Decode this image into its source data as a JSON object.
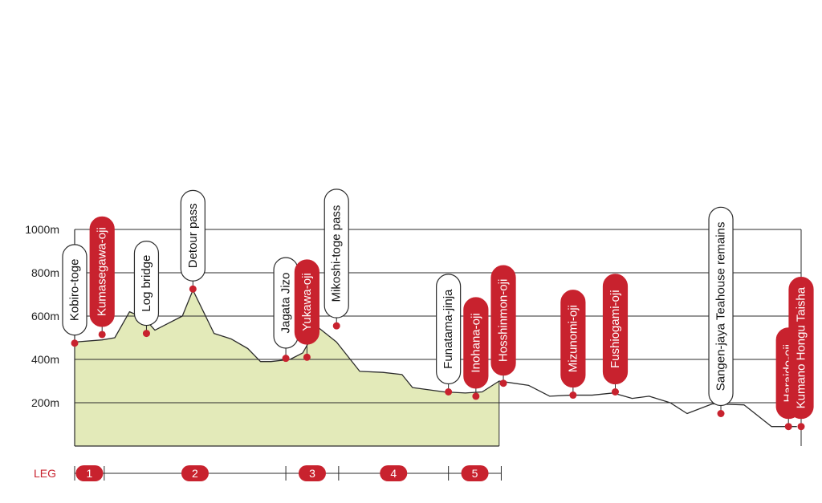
{
  "colors": {
    "accent": "#c8222e",
    "fill": "#e3eab9",
    "line": "#2b2b2b",
    "label_bg": "#ffffff"
  },
  "chart_data": {
    "type": "area",
    "title": "",
    "xlabel": "",
    "ylabel": "",
    "ylim": [
      0,
      1000
    ],
    "grid": true,
    "y_ticks": [
      {
        "value": 1000,
        "label": "1000m"
      },
      {
        "value": 800,
        "label": "800m"
      },
      {
        "value": 600,
        "label": "600m"
      },
      {
        "value": 400,
        "label": "400m"
      },
      {
        "value": 200,
        "label": "200m"
      }
    ],
    "elevation_profile": [
      [
        0,
        480
      ],
      [
        13,
        490
      ],
      [
        19,
        500
      ],
      [
        26,
        620
      ],
      [
        33,
        590
      ],
      [
        38,
        535
      ],
      [
        43,
        560
      ],
      [
        51,
        600
      ],
      [
        56,
        720
      ],
      [
        62,
        600
      ],
      [
        66,
        520
      ],
      [
        74,
        495
      ],
      [
        82,
        450
      ],
      [
        88,
        390
      ],
      [
        93,
        390
      ],
      [
        102,
        400
      ],
      [
        108,
        430
      ],
      [
        115,
        550
      ],
      [
        124,
        480
      ],
      [
        135,
        345
      ],
      [
        146,
        340
      ],
      [
        155,
        330
      ],
      [
        160,
        270
      ],
      [
        175,
        250
      ],
      [
        185,
        245
      ],
      [
        193,
        250
      ],
      [
        201,
        300
      ],
      [
        215,
        280
      ],
      [
        225,
        230
      ],
      [
        235,
        235
      ],
      [
        245,
        235
      ],
      [
        255,
        245
      ],
      [
        264,
        220
      ],
      [
        272,
        230
      ],
      [
        282,
        200
      ],
      [
        290,
        150
      ],
      [
        302,
        195
      ],
      [
        317,
        190
      ],
      [
        330,
        90
      ],
      [
        342,
        90
      ]
    ],
    "shaded_until_x": 201,
    "waypoints": [
      {
        "name": "Kobiro-toge",
        "x": 0,
        "elev": 475,
        "official": false
      },
      {
        "name": "Kumasegawa-oji",
        "x": 13,
        "elev": 515,
        "official": true
      },
      {
        "name": "Log bridge",
        "x": 34,
        "elev": 520,
        "official": false
      },
      {
        "name": "Detour pass",
        "x": 56,
        "elev": 725,
        "official": false
      },
      {
        "name": "Jagata Jizo",
        "x": 100,
        "elev": 405,
        "official": false
      },
      {
        "name": "Yukawa-oji",
        "x": 110,
        "elev": 410,
        "official": true
      },
      {
        "name": "Mikoshi-toge pass",
        "x": 124,
        "elev": 555,
        "official": false
      },
      {
        "name": "Funatama-jinja",
        "x": 177,
        "elev": 250,
        "official": false
      },
      {
        "name": "Inohana-oji",
        "x": 190,
        "elev": 230,
        "official": true
      },
      {
        "name": "Hosshinmon-oji",
        "x": 203,
        "elev": 290,
        "official": true
      },
      {
        "name": "Mizunomi-oji",
        "x": 236,
        "elev": 235,
        "official": true
      },
      {
        "name": "Fushiogami-oji",
        "x": 256,
        "elev": 250,
        "official": true
      },
      {
        "name": "Sangen-jaya Teahouse remains",
        "x": 306,
        "elev": 150,
        "official": false
      },
      {
        "name": "Haraido-oji",
        "x": 338,
        "elev": 90,
        "official": true
      },
      {
        "name": "Kumano Hongu Taisha",
        "x": 344,
        "elev": 90,
        "official": true
      }
    ],
    "legs": {
      "label": "LEG",
      "ticks": [
        0,
        14,
        100,
        125,
        177,
        202
      ],
      "items": [
        {
          "label": "1",
          "start": 0,
          "end": 14
        },
        {
          "label": "2",
          "start": 14,
          "end": 100
        },
        {
          "label": "3",
          "start": 100,
          "end": 125
        },
        {
          "label": "4",
          "start": 125,
          "end": 177
        },
        {
          "label": "5",
          "start": 177,
          "end": 202
        }
      ]
    }
  }
}
